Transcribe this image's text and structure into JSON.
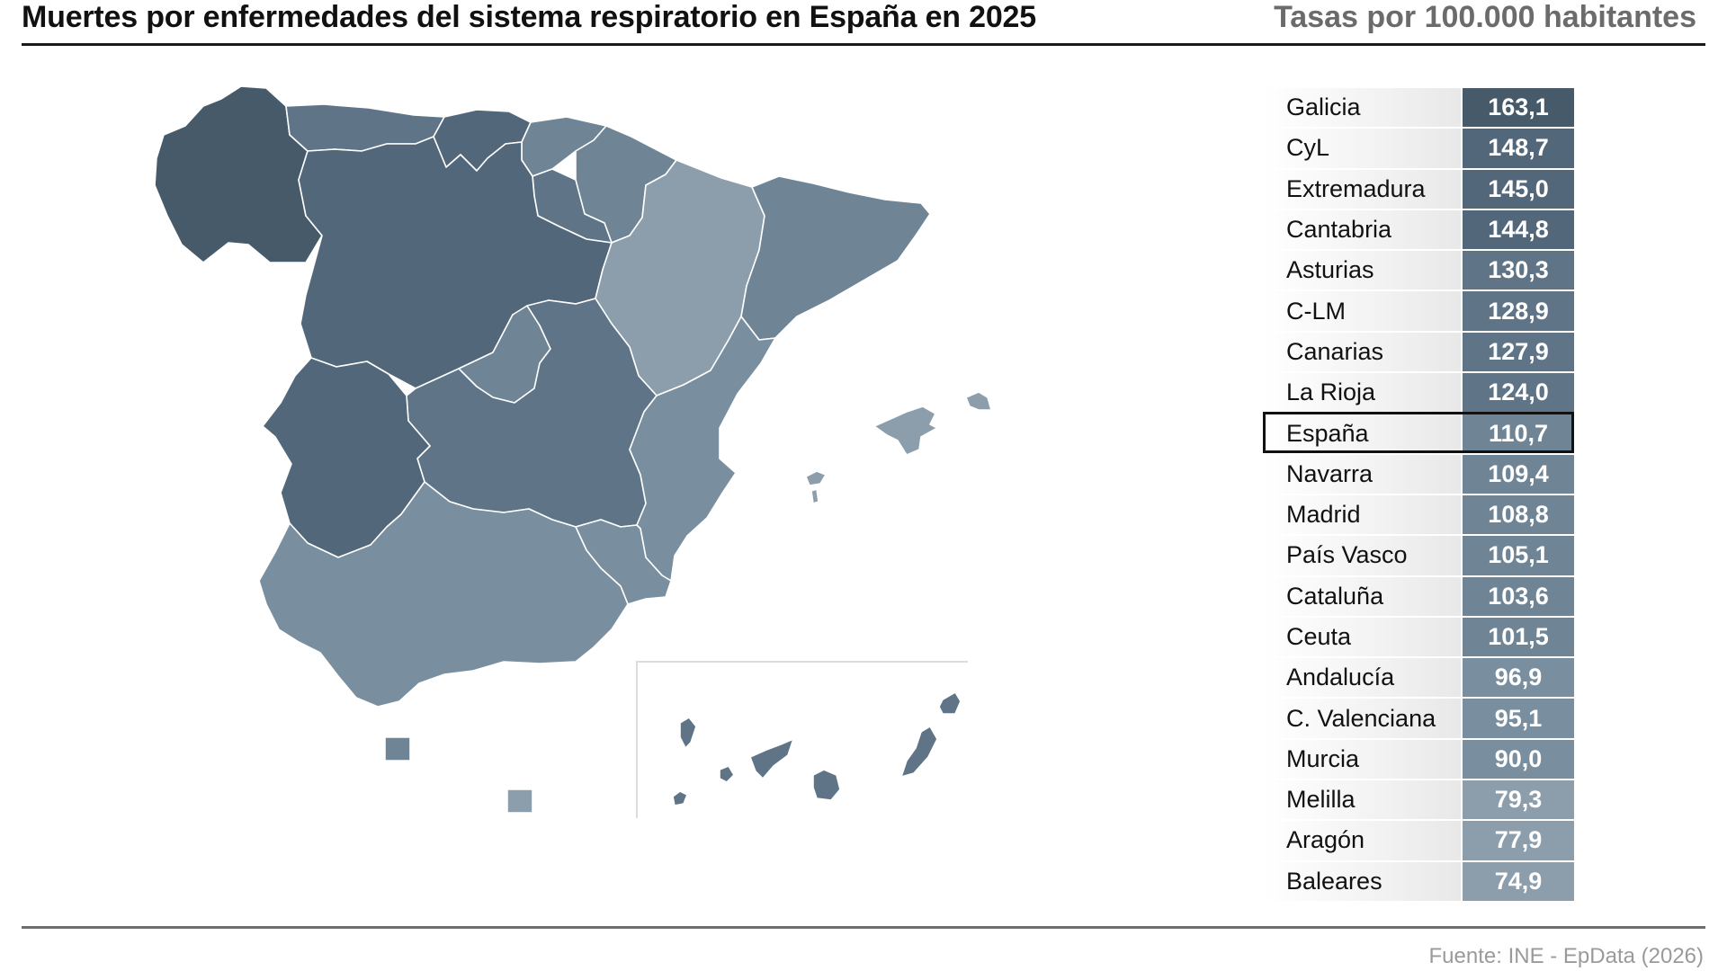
{
  "header": {
    "title": "Muertes por enfermedades del sistema respiratorio en España en 2025",
    "subtitle": "Tasas por 100.000 habitantes"
  },
  "source": "Fuente: INE - EpData (2026)",
  "colors": {
    "very_dark": "#465a69",
    "dark": "#53677a",
    "mid_dark": "#5f7587",
    "mid": "#6f8596",
    "mid_light": "#798f9f",
    "light": "#8c9eac",
    "highlight_border": "#111111"
  },
  "ranking": [
    {
      "name": "Galicia",
      "value": "163,1",
      "color": "#465a69"
    },
    {
      "name": "CyL",
      "value": "148,7",
      "color": "#53677a"
    },
    {
      "name": "Extremadura",
      "value": "145,0",
      "color": "#53677a"
    },
    {
      "name": "Cantabria",
      "value": "144,8",
      "color": "#53677a"
    },
    {
      "name": "Asturias",
      "value": "130,3",
      "color": "#5f7587"
    },
    {
      "name": "C-LM",
      "value": "128,9",
      "color": "#5f7587"
    },
    {
      "name": "Canarias",
      "value": "127,9",
      "color": "#5f7587"
    },
    {
      "name": "La Rioja",
      "value": "124,0",
      "color": "#5f7587"
    },
    {
      "name": "España",
      "value": "110,7",
      "color": "#6f8596",
      "highlight": true
    },
    {
      "name": "Navarra",
      "value": "109,4",
      "color": "#6f8596"
    },
    {
      "name": "Madrid",
      "value": "108,8",
      "color": "#6f8596"
    },
    {
      "name": "País Vasco",
      "value": "105,1",
      "color": "#6f8596"
    },
    {
      "name": "Cataluña",
      "value": "103,6",
      "color": "#6f8596"
    },
    {
      "name": "Ceuta",
      "value": "101,5",
      "color": "#6f8596"
    },
    {
      "name": "Andalucía",
      "value": "96,9",
      "color": "#798f9f"
    },
    {
      "name": "C. Valenciana",
      "value": "95,1",
      "color": "#798f9f"
    },
    {
      "name": "Murcia",
      "value": "90,0",
      "color": "#798f9f"
    },
    {
      "name": "Melilla",
      "value": "79,3",
      "color": "#8c9eac"
    },
    {
      "name": "Aragón",
      "value": "77,9",
      "color": "#8c9eac"
    },
    {
      "name": "Baleares",
      "value": "74,9",
      "color": "#8c9eac"
    }
  ],
  "map_regions": [
    {
      "id": "galicia",
      "color": "#465a69"
    },
    {
      "id": "asturias",
      "color": "#5f7587"
    },
    {
      "id": "cantabria",
      "color": "#53677a"
    },
    {
      "id": "pais-vasco",
      "color": "#6f8596"
    },
    {
      "id": "navarra",
      "color": "#6f8596"
    },
    {
      "id": "la-rioja",
      "color": "#5f7587"
    },
    {
      "id": "castilla-y-leon",
      "color": "#53677a"
    },
    {
      "id": "aragon",
      "color": "#8c9eac"
    },
    {
      "id": "cataluna",
      "color": "#6f8596"
    },
    {
      "id": "madrid",
      "color": "#6f8596"
    },
    {
      "id": "castilla-la-mancha",
      "color": "#5f7587"
    },
    {
      "id": "extremadura",
      "color": "#53677a"
    },
    {
      "id": "c-valenciana",
      "color": "#798f9f"
    },
    {
      "id": "murcia",
      "color": "#798f9f"
    },
    {
      "id": "andalucia",
      "color": "#798f9f"
    },
    {
      "id": "baleares",
      "color": "#8c9eac"
    },
    {
      "id": "canarias",
      "color": "#5f7587"
    },
    {
      "id": "ceuta",
      "color": "#6f8596"
    },
    {
      "id": "melilla",
      "color": "#8c9eac"
    }
  ]
}
